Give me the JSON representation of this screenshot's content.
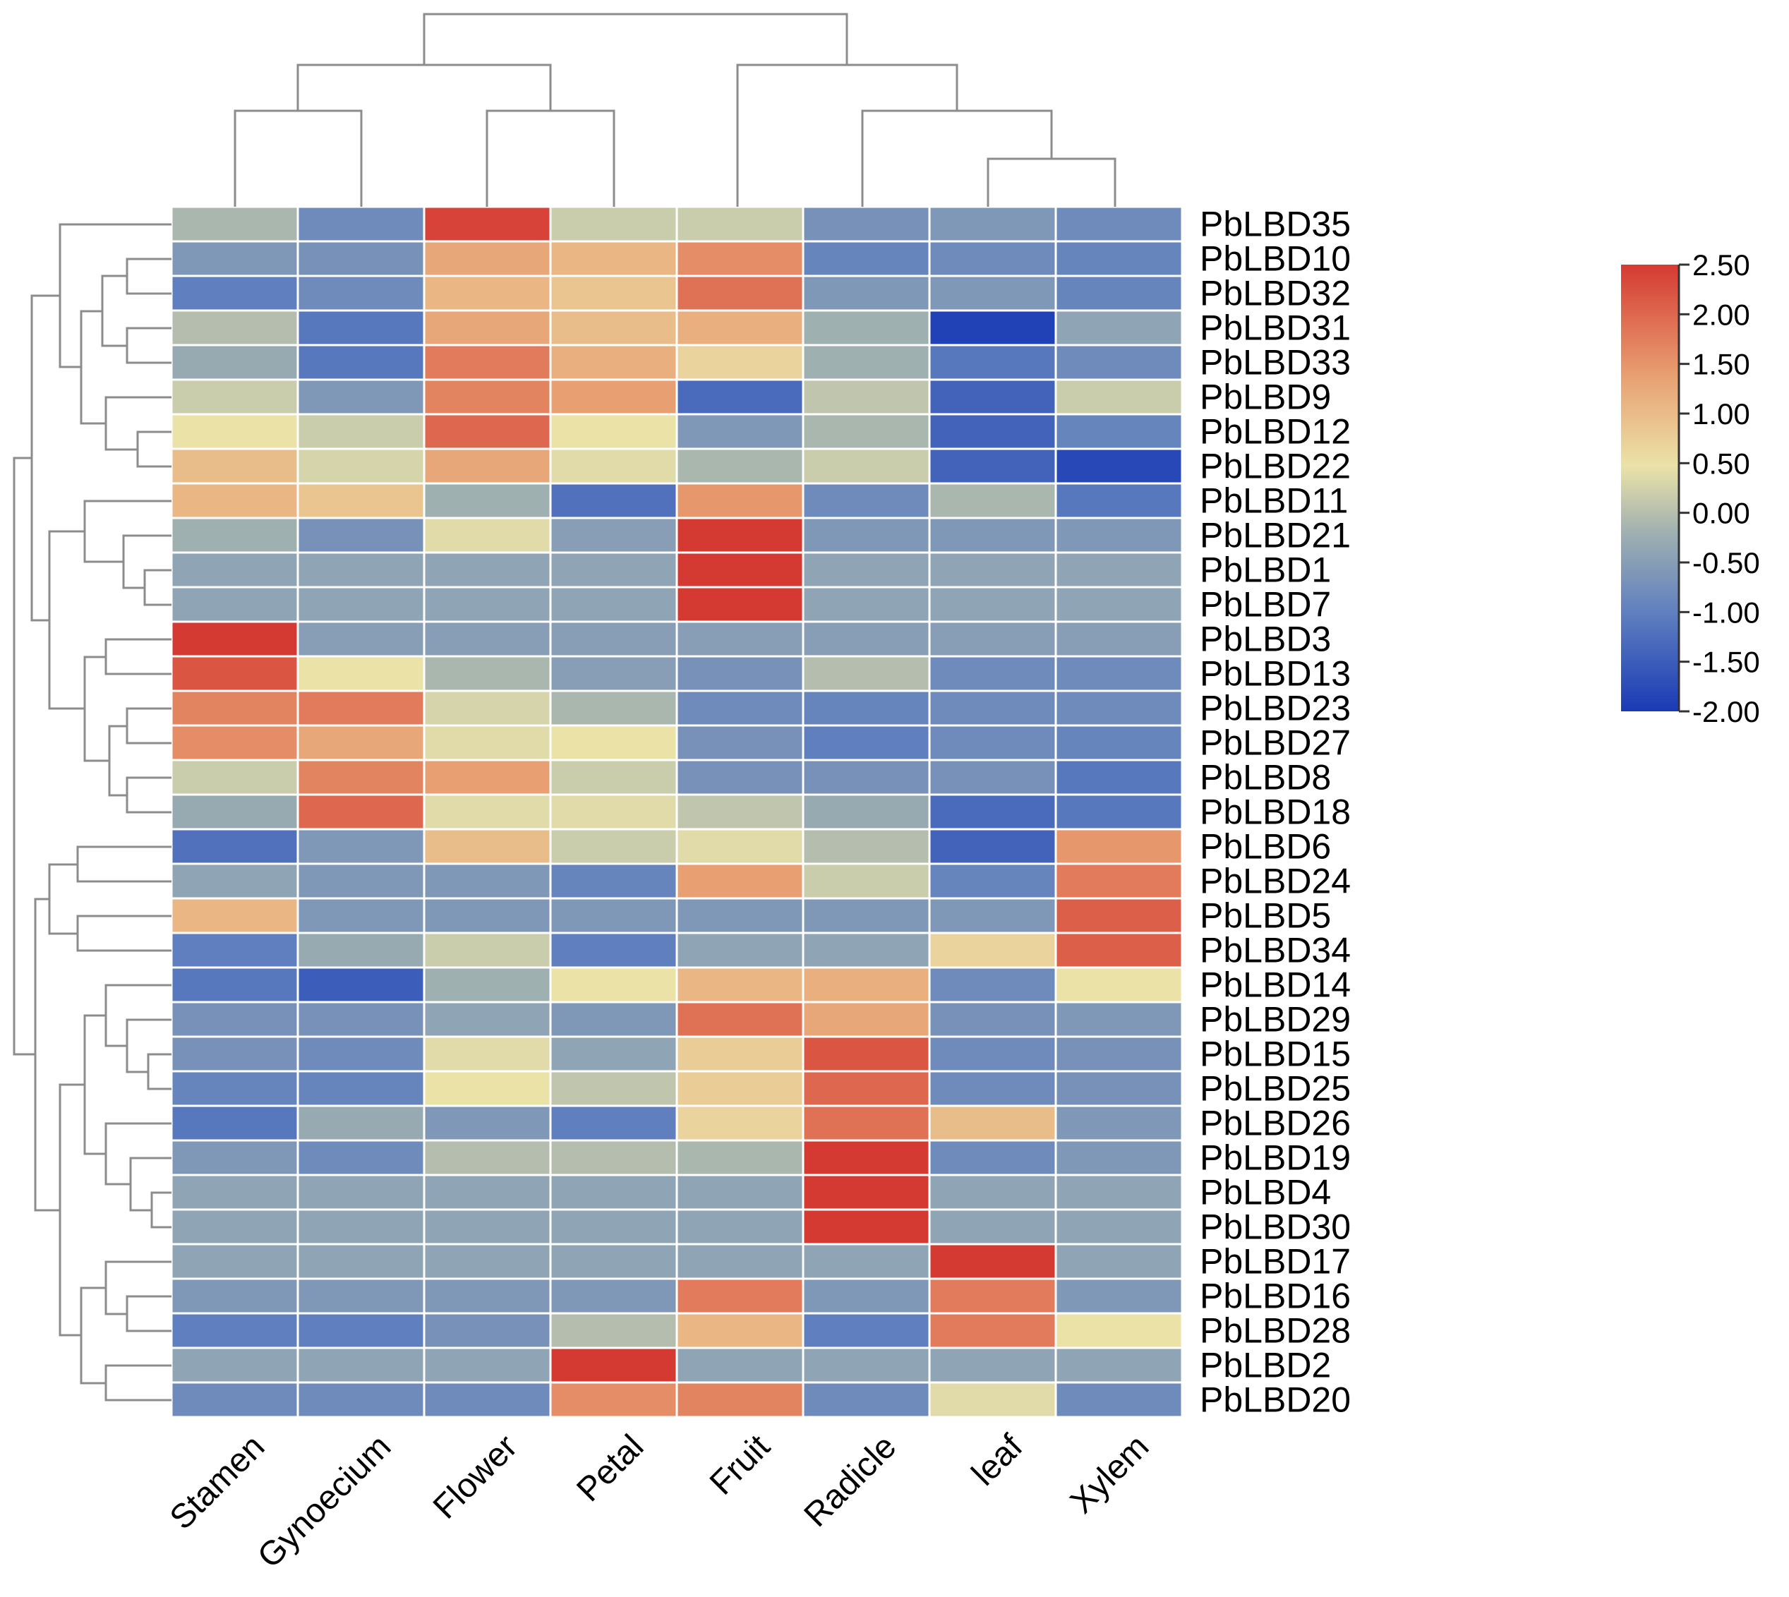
{
  "chart_data": {
    "type": "heatmap",
    "title": "",
    "columns": [
      "Stamen",
      "Gynoecium",
      "Flower",
      "Petal",
      "Fruit",
      "Radicle",
      "leaf",
      "Xylem"
    ],
    "rows": [
      "PbLBD35",
      "PbLBD10",
      "PbLBD32",
      "PbLBD31",
      "PbLBD33",
      "PbLBD9",
      "PbLBD12",
      "PbLBD22",
      "PbLBD11",
      "PbLBD21",
      "PbLBD1",
      "PbLBD7",
      "PbLBD3",
      "PbLBD13",
      "PbLBD23",
      "PbLBD27",
      "PbLBD8",
      "PbLBD18",
      "PbLBD6",
      "PbLBD24",
      "PbLBD5",
      "PbLBD34",
      "PbLBD14",
      "PbLBD29",
      "PbLBD15",
      "PbLBD25",
      "PbLBD26",
      "PbLBD19",
      "PbLBD4",
      "PbLBD30",
      "PbLBD17",
      "PbLBD16",
      "PbLBD28",
      "PbLBD2",
      "PbLBD20"
    ],
    "values": [
      [
        -0.1,
        -0.8,
        2.4,
        0.2,
        0.2,
        -0.7,
        -0.6,
        -0.8
      ],
      [
        -0.6,
        -0.7,
        1.3,
        1.1,
        1.6,
        -0.9,
        -0.8,
        -0.9
      ],
      [
        -1.0,
        -0.8,
        1.1,
        0.9,
        1.9,
        -0.6,
        -0.6,
        -0.9
      ],
      [
        0.0,
        -1.1,
        1.3,
        1.0,
        1.2,
        -0.2,
        -1.9,
        -0.4
      ],
      [
        -0.3,
        -1.1,
        1.8,
        1.2,
        0.7,
        -0.2,
        -1.1,
        -0.8
      ],
      [
        0.2,
        -0.6,
        1.7,
        1.4,
        -1.3,
        0.1,
        -1.4,
        0.2
      ],
      [
        0.5,
        0.2,
        2.0,
        0.5,
        -0.6,
        -0.1,
        -1.4,
        -0.9
      ],
      [
        1.0,
        0.3,
        1.3,
        0.4,
        -0.1,
        0.2,
        -1.4,
        -1.8
      ],
      [
        1.1,
        0.9,
        -0.2,
        -1.2,
        1.5,
        -0.8,
        -0.1,
        -1.1
      ],
      [
        -0.2,
        -0.7,
        0.4,
        -0.5,
        2.5,
        -0.6,
        -0.6,
        -0.6
      ],
      [
        -0.4,
        -0.4,
        -0.4,
        -0.4,
        2.5,
        -0.4,
        -0.4,
        -0.4
      ],
      [
        -0.4,
        -0.4,
        -0.4,
        -0.4,
        2.5,
        -0.4,
        -0.4,
        -0.4
      ],
      [
        2.5,
        -0.5,
        -0.5,
        -0.5,
        -0.5,
        -0.5,
        -0.5,
        -0.5
      ],
      [
        2.2,
        0.5,
        -0.1,
        -0.5,
        -0.7,
        0.0,
        -0.8,
        -0.8
      ],
      [
        1.7,
        1.8,
        0.3,
        -0.1,
        -0.8,
        -0.9,
        -0.8,
        -0.8
      ],
      [
        1.6,
        1.3,
        0.4,
        0.5,
        -0.7,
        -1.0,
        -0.8,
        -0.9
      ],
      [
        0.2,
        1.7,
        1.4,
        0.2,
        -0.7,
        -0.7,
        -0.7,
        -1.1
      ],
      [
        -0.3,
        2.0,
        0.4,
        0.4,
        0.1,
        -0.3,
        -1.3,
        -1.1
      ],
      [
        -1.2,
        -0.6,
        1.0,
        0.2,
        0.4,
        0.0,
        -1.4,
        1.5
      ],
      [
        -0.4,
        -0.6,
        -0.6,
        -0.9,
        1.4,
        0.2,
        -0.9,
        1.8
      ],
      [
        1.1,
        -0.6,
        -0.6,
        -0.6,
        -0.6,
        -0.6,
        -0.6,
        2.1
      ],
      [
        -1.0,
        -0.3,
        0.2,
        -1.0,
        -0.4,
        -0.4,
        0.7,
        2.1
      ],
      [
        -1.1,
        -1.5,
        -0.2,
        0.5,
        1.1,
        1.2,
        -0.8,
        0.5
      ],
      [
        -0.7,
        -0.7,
        -0.4,
        -0.6,
        1.9,
        1.3,
        -0.7,
        -0.6
      ],
      [
        -0.7,
        -0.8,
        0.4,
        -0.4,
        0.8,
        2.2,
        -0.8,
        -0.7
      ],
      [
        -0.9,
        -0.9,
        0.5,
        0.1,
        0.8,
        2.0,
        -0.8,
        -0.7
      ],
      [
        -1.1,
        -0.3,
        -0.6,
        -1.0,
        0.7,
        1.9,
        1.0,
        -0.6
      ],
      [
        -0.6,
        -0.8,
        0.0,
        0.0,
        -0.1,
        2.5,
        -0.8,
        -0.6
      ],
      [
        -0.4,
        -0.4,
        -0.4,
        -0.4,
        -0.4,
        2.5,
        -0.4,
        -0.4
      ],
      [
        -0.4,
        -0.4,
        -0.4,
        -0.4,
        -0.4,
        2.5,
        -0.4,
        -0.4
      ],
      [
        -0.4,
        -0.4,
        -0.4,
        -0.4,
        -0.4,
        -0.4,
        2.5,
        -0.4
      ],
      [
        -0.6,
        -0.6,
        -0.6,
        -0.6,
        1.8,
        -0.6,
        1.8,
        -0.6
      ],
      [
        -1.0,
        -1.0,
        -0.7,
        0.0,
        1.1,
        -1.0,
        1.8,
        0.5
      ],
      [
        -0.4,
        -0.4,
        -0.4,
        2.5,
        -0.4,
        -0.4,
        -0.4,
        -0.4
      ],
      [
        -0.8,
        -0.8,
        -0.8,
        1.6,
        1.7,
        -0.8,
        0.4,
        -0.8
      ]
    ],
    "color_scale": {
      "min": -2.0,
      "max": 2.5,
      "ticks": [
        "2.50",
        "2.00",
        "1.50",
        "1.00",
        "0.50",
        "0.00",
        "-0.50",
        "-1.00",
        "-1.50",
        "-2.00"
      ],
      "colors": [
        "#1a3ab5",
        "#5f7fbf",
        "#9fb0b0",
        "#ebe2a8",
        "#e8a072",
        "#d53a32"
      ]
    },
    "column_dendrogram": [
      [
        0,
        1
      ],
      [
        2,
        3
      ],
      [
        6,
        7
      ],
      [
        5,
        "c2"
      ],
      [
        "c0",
        "c1"
      ],
      [
        4,
        "c3"
      ],
      [
        "c4",
        "c5"
      ]
    ],
    "row_dendrogram_order": "as listed"
  }
}
